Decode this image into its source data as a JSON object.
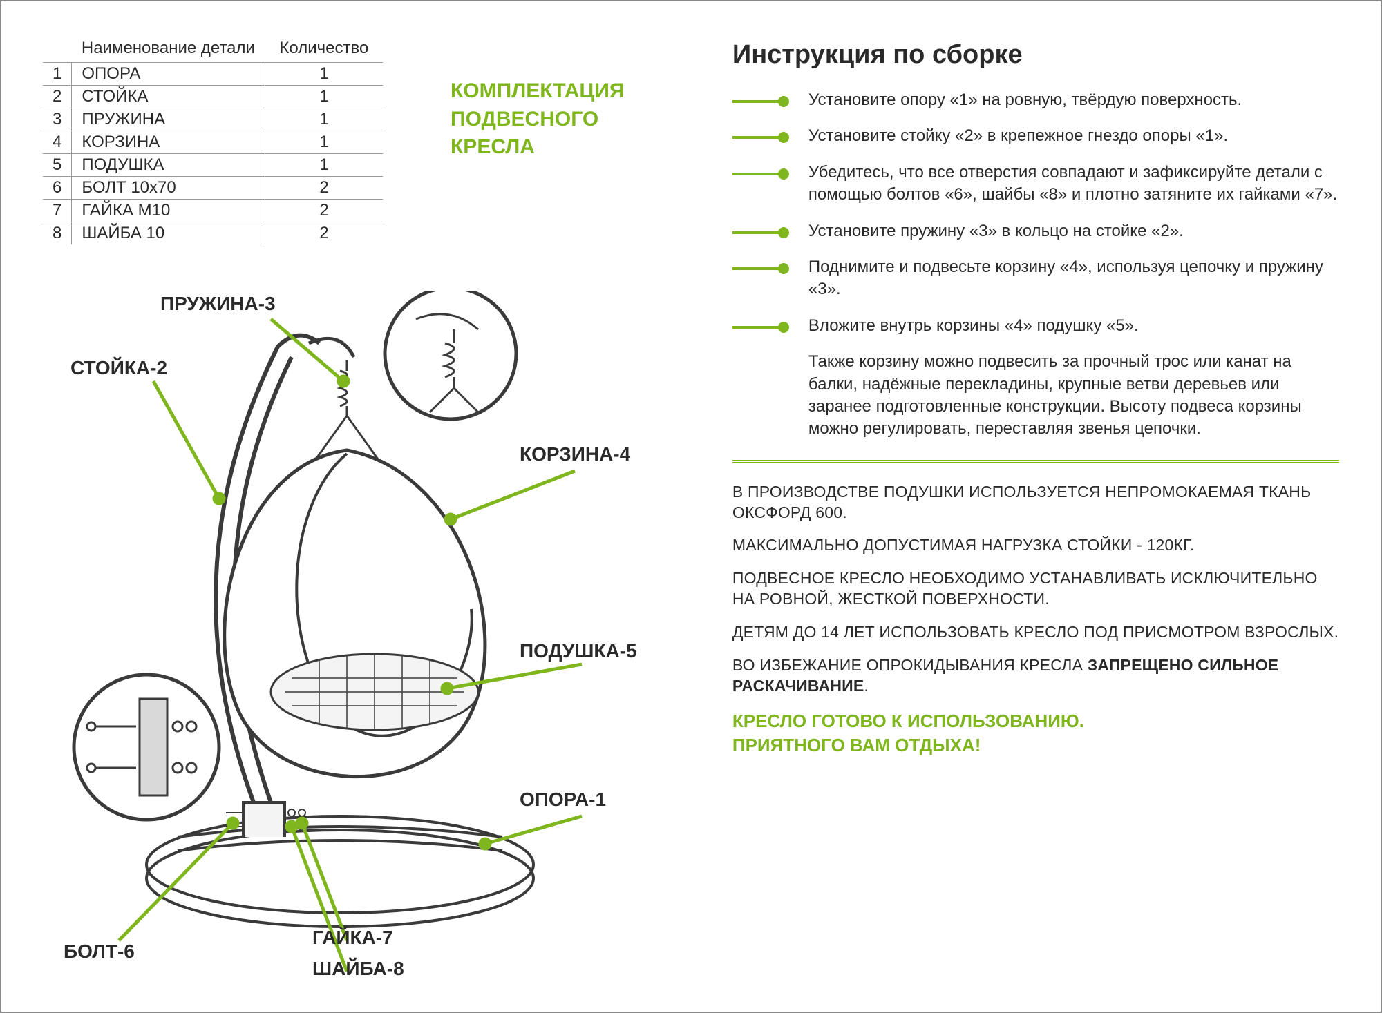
{
  "colors": {
    "accent": "#7fb51d",
    "text": "#2a2a2a",
    "border": "#999999",
    "diagram_stroke": "#3a3a3a",
    "diagram_fill_light": "#f4f4f4",
    "diagram_fill_mid": "#d9d9d9"
  },
  "table": {
    "header_name": "Наименование детали",
    "header_qty": "Количество",
    "rows": [
      {
        "idx": "1",
        "name": "ОПОРА",
        "qty": "1"
      },
      {
        "idx": "2",
        "name": "СТОЙКА",
        "qty": "1"
      },
      {
        "idx": "3",
        "name": "ПРУЖИНА",
        "qty": "1"
      },
      {
        "idx": "4",
        "name": "КОРЗИНА",
        "qty": "1"
      },
      {
        "idx": "5",
        "name": "ПОДУШКА",
        "qty": "1"
      },
      {
        "idx": "6",
        "name": "БОЛТ 10х70",
        "qty": "2"
      },
      {
        "idx": "7",
        "name": "ГАЙКА М10",
        "qty": "2"
      },
      {
        "idx": "8",
        "name": "ШАЙБА 10",
        "qty": "2"
      }
    ]
  },
  "kit_title_l1": "КОМПЛЕКТАЦИЯ",
  "kit_title_l2": "ПОДВЕСНОГО",
  "kit_title_l3": "КРЕСЛА",
  "diagram_labels": {
    "spring": "ПРУЖИНА-3",
    "stand": "СТОЙКА-2",
    "basket": "КОРЗИНА-4",
    "cushion": "ПОДУШКА-5",
    "base": "ОПОРА-1",
    "bolt": "БОЛТ-6",
    "nut": "ГАЙКА-7",
    "washer": "ШАЙБА-8"
  },
  "instructions_title": "Инструкция по сборке",
  "steps": [
    "Установите опору «1» на ровную, твёрдую поверхность.",
    "Установите стойку «2» в крепежное гнездо опоры «1».",
    "Убедитесь, что все отверстия совпадают и зафиксируйте детали с помощью болтов «6», шайбы «8» и плотно затяните их гайками «7».",
    "Установите пружину «3» в кольцо на стойке «2».",
    "Поднимите и подвесьте корзину «4», используя цепочку и пружину «3».",
    "Вложите внутрь корзины «4» подушку «5»."
  ],
  "extra_note": "Также корзину можно подвесить за прочный трос или канат на балки, надёжные перекладины, крупные ветви деревьев или заранее подготовленные конструкции. Высоту подвеса корзины можно регулировать, переставляя звенья цепочки.",
  "safety": [
    "В ПРОИЗВОДСТВЕ ПОДУШКИ ИСПОЛЬЗУЕТСЯ НЕПРОМОКАЕМАЯ ТКАНЬ ОКСФОРД 600.",
    "МАКСИМАЛЬНО ДОПУСТИМАЯ НАГРУЗКА СТОЙКИ - 120КГ.",
    "ПОДВЕСНОЕ КРЕСЛО НЕОБХОДИМО УСТАНАВЛИВАТЬ ИСКЛЮЧИТЕЛЬНО НА РОВНОЙ, ЖЕСТКОЙ ПОВЕРХНОСТИ.",
    "ДЕТЯМ ДО 14 ЛЕТ ИСПОЛЬЗОВАТЬ КРЕСЛО ПОД ПРИСМОТРОМ ВЗРОСЛЫХ."
  ],
  "safety_last_prefix": "ВО ИЗБЕЖАНИЕ ОПРОКИДЫВАНИЯ КРЕСЛА ",
  "safety_last_bold": "ЗАПРЕЩЕНО СИЛЬНОЕ РАСКАЧИВАНИЕ",
  "ready_l1": "КРЕСЛО ГОТОВО К ИСПОЛЬЗОВАНИЮ.",
  "ready_l2": "ПРИЯТНОГО ВАМ ОТДЫХА!"
}
